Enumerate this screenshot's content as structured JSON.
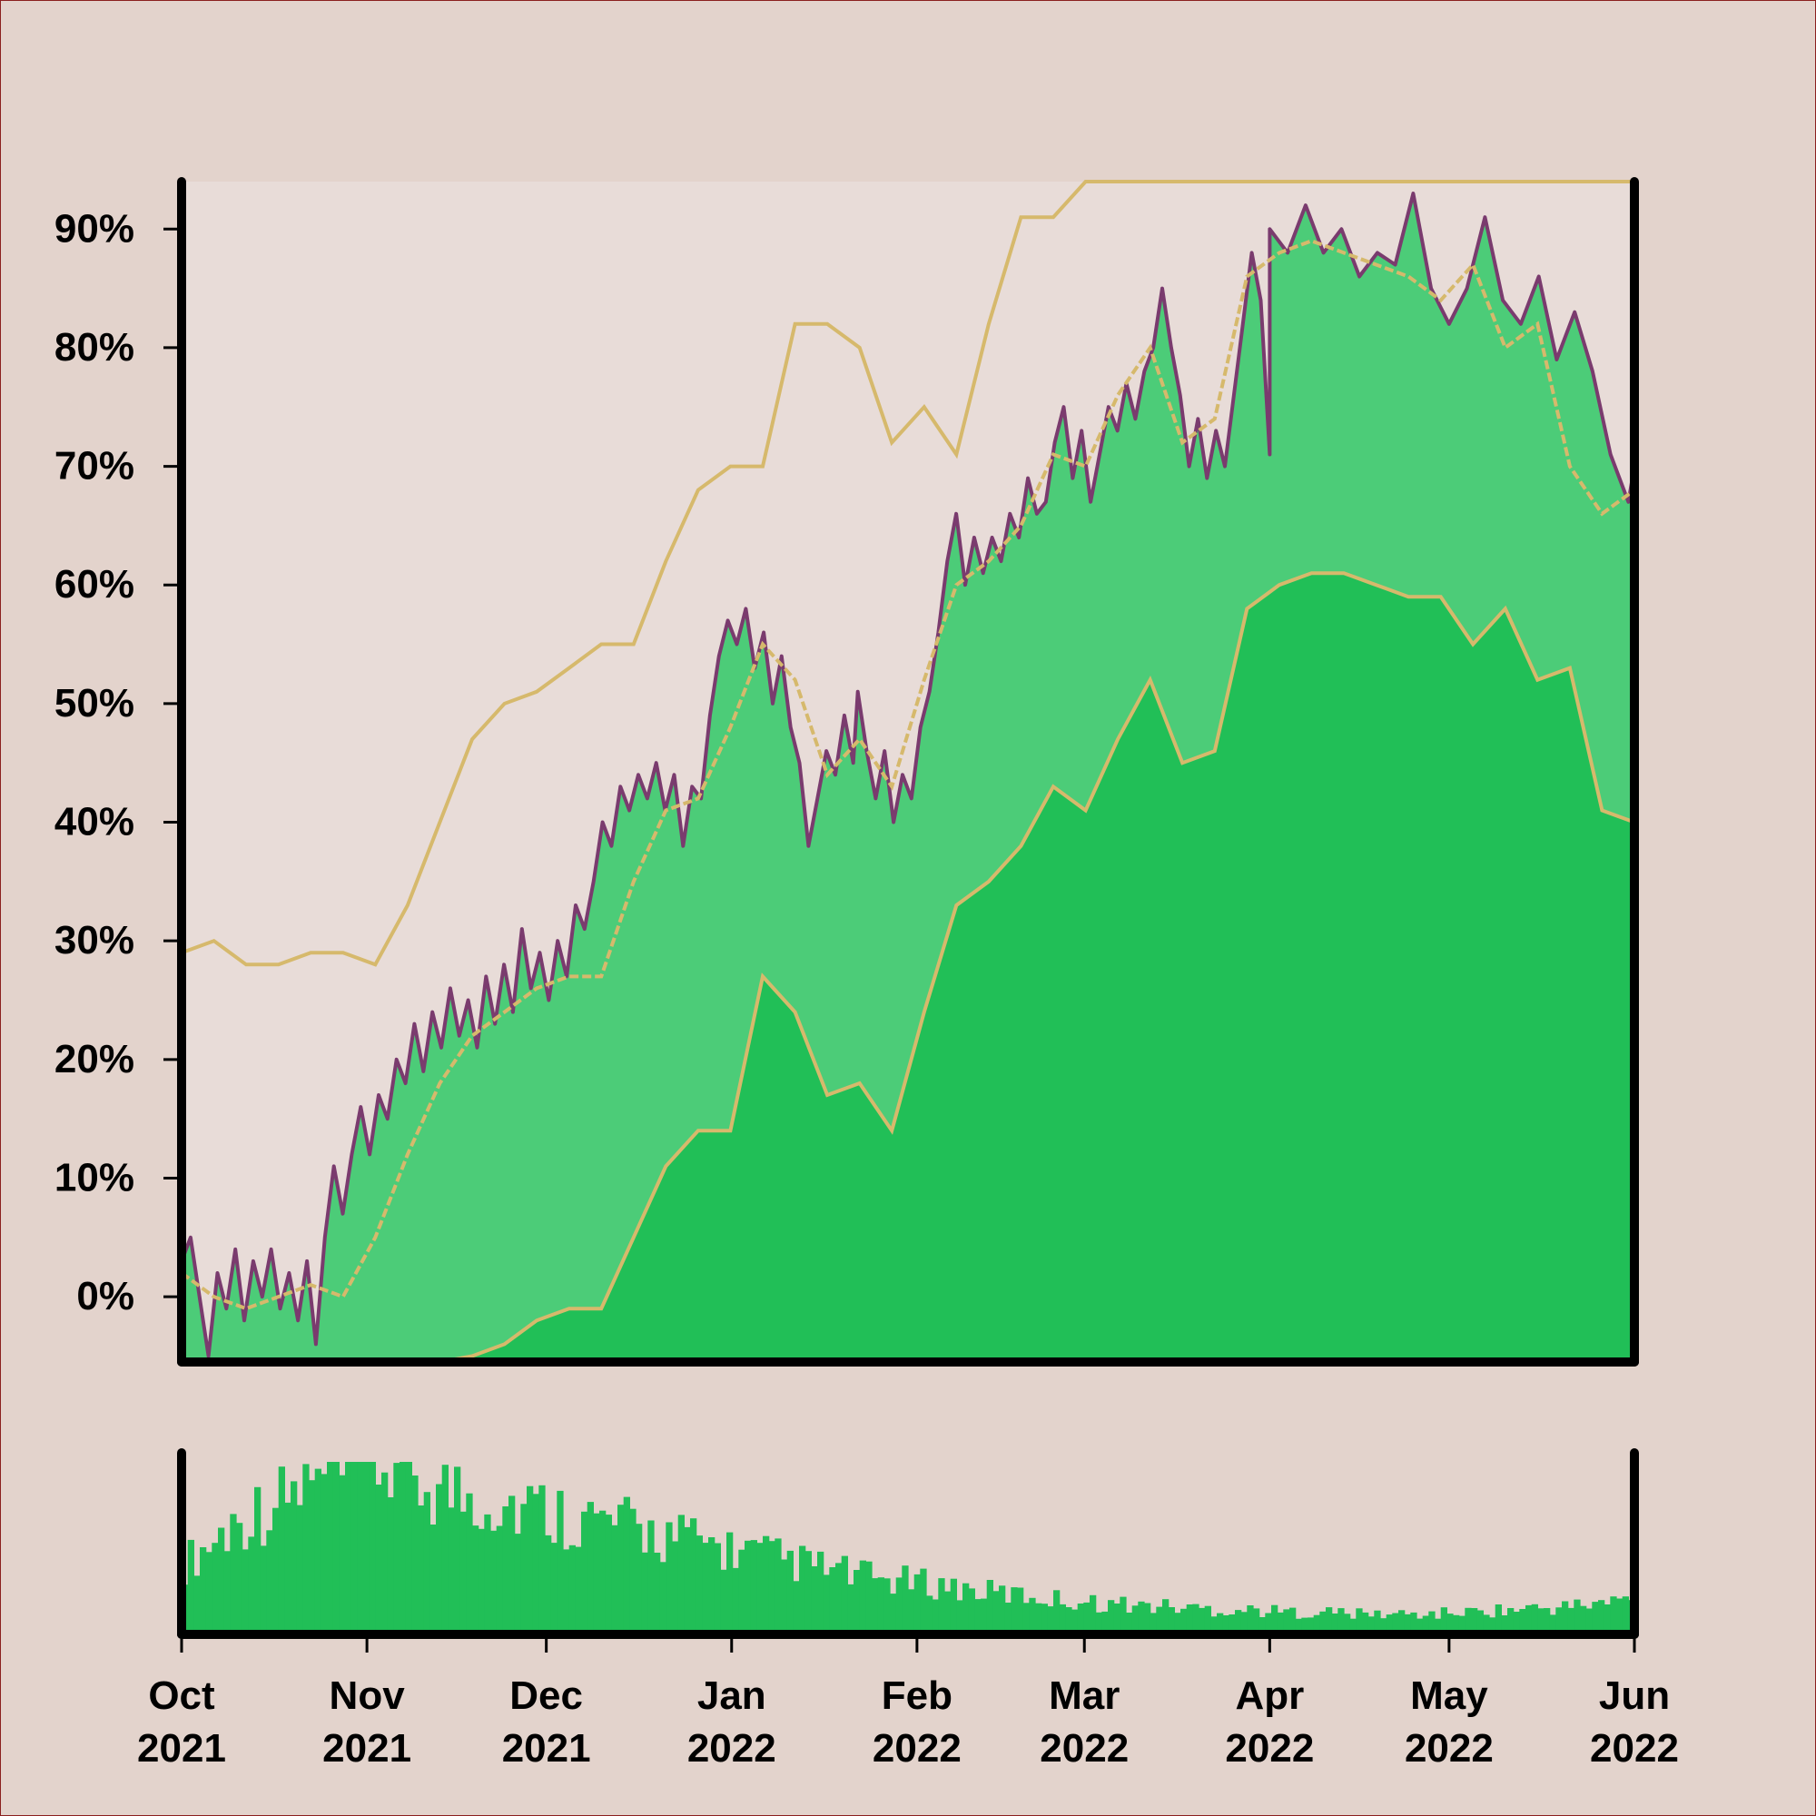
{
  "chart_data": [
    {
      "type": "area",
      "title": "",
      "xlabel": "",
      "ylabel": "",
      "ylim": [
        -5.5,
        94
      ],
      "xlim": [
        "2021-10-01",
        "2022-06-01"
      ],
      "y_unit": "%",
      "y_ticks": [
        0,
        10,
        20,
        30,
        40,
        50,
        60,
        70,
        80,
        90
      ],
      "y_tick_labels": [
        "0%",
        "10%",
        "20%",
        "30%",
        "40%",
        "50%",
        "60%",
        "70%",
        "80%",
        "90%"
      ],
      "x_tick_dates": [
        "2021-10-01",
        "2021-11-01",
        "2021-12-01",
        "2022-01-01",
        "2022-02-01",
        "2022-03-01",
        "2022-04-01",
        "2022-05-01",
        "2022-06-01"
      ],
      "x_tick_labels": [
        {
          "month": "Oct",
          "year": "2021"
        },
        {
          "month": "Nov",
          "year": "2021"
        },
        {
          "month": "Dec",
          "year": "2021"
        },
        {
          "month": "Jan",
          "year": "2022"
        },
        {
          "month": "Feb",
          "year": "2022"
        },
        {
          "month": "Mar",
          "year": "2022"
        },
        {
          "month": "Apr",
          "year": "2022"
        },
        {
          "month": "May",
          "year": "2022"
        },
        {
          "month": "Jun",
          "year": "2022"
        }
      ],
      "legend": "none",
      "grid": false,
      "colors": {
        "background": "#e3d3cc",
        "plot_background": "#e8dcd8",
        "value_line": "#7a3b6e",
        "value_fill": "#4ccc78",
        "lower_band_fill": "#21bf57",
        "band_lines": "#d6b96c",
        "volume_bars": "#21bf57",
        "axis": "#000000"
      },
      "series": [
        {
          "role": "value",
          "points": [
            [
              "2021-10-01",
              3
            ],
            [
              "2021-10-03",
              5
            ],
            [
              "2021-10-05",
              0
            ],
            [
              "2021-10-07",
              -5
            ],
            [
              "2021-10-09",
              2
            ],
            [
              "2021-10-11",
              -1
            ],
            [
              "2021-10-13",
              4
            ],
            [
              "2021-10-15",
              -2
            ],
            [
              "2021-10-17",
              3
            ],
            [
              "2021-10-19",
              0
            ],
            [
              "2021-10-21",
              4
            ],
            [
              "2021-10-23",
              -1
            ],
            [
              "2021-10-25",
              2
            ],
            [
              "2021-10-27",
              -2
            ],
            [
              "2021-10-29",
              3
            ],
            [
              "2021-10-31",
              -4
            ],
            [
              "2021-11-02",
              5
            ],
            [
              "2021-11-04",
              11
            ],
            [
              "2021-11-06",
              7
            ],
            [
              "2021-11-08",
              12
            ],
            [
              "2021-11-10",
              16
            ],
            [
              "2021-11-12",
              12
            ],
            [
              "2021-11-14",
              17
            ],
            [
              "2021-11-16",
              15
            ],
            [
              "2021-11-18",
              20
            ],
            [
              "2021-11-20",
              18
            ],
            [
              "2021-11-22",
              23
            ],
            [
              "2021-11-24",
              19
            ],
            [
              "2021-11-26",
              24
            ],
            [
              "2021-11-28",
              21
            ],
            [
              "2021-11-30",
              26
            ],
            [
              "2021-12-02",
              22
            ],
            [
              "2021-12-04",
              25
            ],
            [
              "2021-12-06",
              21
            ],
            [
              "2021-12-08",
              27
            ],
            [
              "2021-12-10",
              23
            ],
            [
              "2021-12-12",
              28
            ],
            [
              "2021-12-14",
              24
            ],
            [
              "2021-12-16",
              31
            ],
            [
              "2021-12-18",
              26
            ],
            [
              "2021-12-20",
              29
            ],
            [
              "2021-12-22",
              25
            ],
            [
              "2021-12-24",
              30
            ],
            [
              "2021-12-26",
              27
            ],
            [
              "2021-12-28",
              33
            ],
            [
              "2021-12-30",
              31
            ],
            [
              "2022-01-01",
              35
            ],
            [
              "2022-01-03",
              40
            ],
            [
              "2022-01-05",
              38
            ],
            [
              "2022-01-07",
              43
            ],
            [
              "2022-01-09",
              41
            ],
            [
              "2022-01-11",
              44
            ],
            [
              "2022-01-13",
              42
            ],
            [
              "2022-01-15",
              45
            ],
            [
              "2022-01-17",
              41
            ],
            [
              "2022-01-19",
              44
            ],
            [
              "2022-01-21",
              38
            ],
            [
              "2022-01-23",
              43
            ],
            [
              "2022-01-25",
              42
            ],
            [
              "2022-01-27",
              49
            ],
            [
              "2022-01-29",
              54
            ],
            [
              "2022-01-31",
              57
            ],
            [
              "2022-02-02",
              55
            ],
            [
              "2022-02-04",
              58
            ],
            [
              "2022-02-06",
              53
            ],
            [
              "2022-02-08",
              56
            ],
            [
              "2022-02-10",
              50
            ],
            [
              "2022-02-12",
              54
            ],
            [
              "2022-02-14",
              48
            ],
            [
              "2022-02-16",
              45
            ],
            [
              "2022-02-18",
              38
            ],
            [
              "2022-02-20",
              42
            ],
            [
              "2022-02-22",
              46
            ],
            [
              "2022-02-24",
              44
            ],
            [
              "2022-02-26",
              49
            ],
            [
              "2022-02-28",
              45
            ],
            [
              "2022-03-01",
              51
            ],
            [
              "2022-03-03",
              46
            ],
            [
              "2022-03-05",
              42
            ],
            [
              "2022-03-07",
              46
            ],
            [
              "2022-03-09",
              40
            ],
            [
              "2022-03-11",
              44
            ],
            [
              "2022-03-13",
              42
            ],
            [
              "2022-03-15",
              48
            ],
            [
              "2022-03-17",
              51
            ],
            [
              "2022-03-19",
              56
            ],
            [
              "2022-03-21",
              62
            ],
            [
              "2022-03-23",
              66
            ],
            [
              "2022-03-25",
              60
            ],
            [
              "2022-03-27",
              64
            ],
            [
              "2022-03-29",
              61
            ],
            [
              "2022-03-31",
              64
            ],
            [
              "2022-04-02",
              62
            ],
            [
              "2022-04-04",
              66
            ],
            [
              "2022-04-06",
              64
            ],
            [
              "2022-04-08",
              69
            ],
            [
              "2022-04-10",
              66
            ],
            [
              "2022-04-12",
              67
            ],
            [
              "2022-04-14",
              72
            ],
            [
              "2022-04-16",
              75
            ],
            [
              "2022-04-18",
              69
            ],
            [
              "2022-04-20",
              73
            ],
            [
              "2022-04-22",
              67
            ],
            [
              "2022-04-24",
              71
            ],
            [
              "2022-04-26",
              75
            ],
            [
              "2022-04-28",
              73
            ],
            [
              "2022-04-30",
              77
            ],
            [
              "2022-05-02",
              74
            ],
            [
              "2022-05-04",
              78
            ],
            [
              "2022-05-06",
              80
            ],
            [
              "2022-05-08",
              85
            ],
            [
              "2022-05-10",
              80
            ],
            [
              "2022-05-12",
              76
            ],
            [
              "2022-05-14",
              70
            ],
            [
              "2022-05-16",
              74
            ],
            [
              "2022-05-18",
              69
            ],
            [
              "2022-05-20",
              73
            ],
            [
              "2022-05-22",
              70
            ],
            [
              "2022-05-24",
              76
            ],
            [
              "2022-05-26",
              82
            ],
            [
              "2022-05-28",
              88
            ],
            [
              "2022-05-30",
              84
            ],
            [
              "2022-06-01",
              71
            ]
          ],
          "note_x_range": "points follow the date axis; the final stretch continues beyond the first June tick in the original, summarized below",
          "tail_points": [
            [
              "2022-04-01",
              90
            ],
            [
              "2022-04-04",
              88
            ],
            [
              "2022-04-07",
              92
            ],
            [
              "2022-04-10",
              88
            ],
            [
              "2022-04-13",
              90
            ],
            [
              "2022-04-16",
              86
            ],
            [
              "2022-04-19",
              88
            ],
            [
              "2022-04-22",
              87
            ],
            [
              "2022-04-25",
              93
            ],
            [
              "2022-04-28",
              85
            ],
            [
              "2022-05-01",
              82
            ],
            [
              "2022-05-04",
              85
            ],
            [
              "2022-05-07",
              91
            ],
            [
              "2022-05-10",
              84
            ],
            [
              "2022-05-13",
              82
            ],
            [
              "2022-05-16",
              86
            ],
            [
              "2022-05-19",
              79
            ],
            [
              "2022-05-22",
              83
            ],
            [
              "2022-05-25",
              78
            ],
            [
              "2022-05-28",
              71
            ],
            [
              "2022-05-31",
              67
            ],
            [
              "2022-06-01",
              70
            ]
          ]
        },
        {
          "role": "smoothed",
          "values": [
            2,
            0,
            -1,
            0,
            1,
            0,
            5,
            12,
            18,
            22,
            24,
            26,
            27,
            27,
            35,
            41,
            42,
            48,
            55,
            52,
            44,
            47,
            43,
            52,
            60,
            62,
            65,
            71,
            70,
            76,
            80,
            72,
            74,
            86,
            88,
            89,
            88,
            87,
            86,
            84,
            87,
            80,
            82,
            70,
            66,
            68
          ]
        },
        {
          "role": "upper_band",
          "values": [
            29,
            30,
            28,
            28,
            29,
            29,
            28,
            33,
            40,
            47,
            50,
            51,
            53,
            55,
            55,
            62,
            68,
            70,
            70,
            82,
            82,
            80,
            72,
            75,
            71,
            82,
            91,
            91,
            94,
            94,
            94,
            94,
            94,
            94,
            94,
            94,
            94,
            94,
            94,
            94,
            94,
            94,
            94,
            94,
            94,
            94
          ]
        },
        {
          "role": "lower_band",
          "values": [
            -7,
            -8,
            -7,
            -8,
            -7,
            -7,
            -7,
            -6,
            -6,
            -5,
            -4,
            -2,
            -1,
            -1,
            5,
            11,
            14,
            14,
            27,
            24,
            17,
            18,
            14,
            24,
            33,
            35,
            38,
            43,
            41,
            47,
            52,
            45,
            46,
            58,
            60,
            61,
            61,
            60,
            59,
            59,
            55,
            58,
            52,
            53,
            41,
            40
          ]
        }
      ]
    },
    {
      "type": "bar",
      "title": "",
      "xlabel": "",
      "ylabel": "",
      "description_free": true,
      "values": [
        35,
        42,
        50,
        58,
        62,
        66,
        72,
        75,
        78,
        82,
        85,
        80,
        76,
        72,
        70,
        68,
        66,
        64,
        62,
        60,
        58,
        56,
        54,
        52,
        50,
        48,
        46,
        44,
        42,
        40,
        38,
        36,
        34,
        32,
        30,
        28,
        27,
        26,
        25,
        24,
        22,
        21,
        20,
        19,
        18,
        17,
        16,
        15,
        15,
        14,
        14,
        13,
        13,
        12,
        12,
        12,
        11,
        11,
        11,
        11,
        10,
        10,
        10,
        10,
        10,
        11,
        11,
        12,
        12,
        13,
        13,
        14,
        15,
        16,
        18
      ]
    }
  ]
}
